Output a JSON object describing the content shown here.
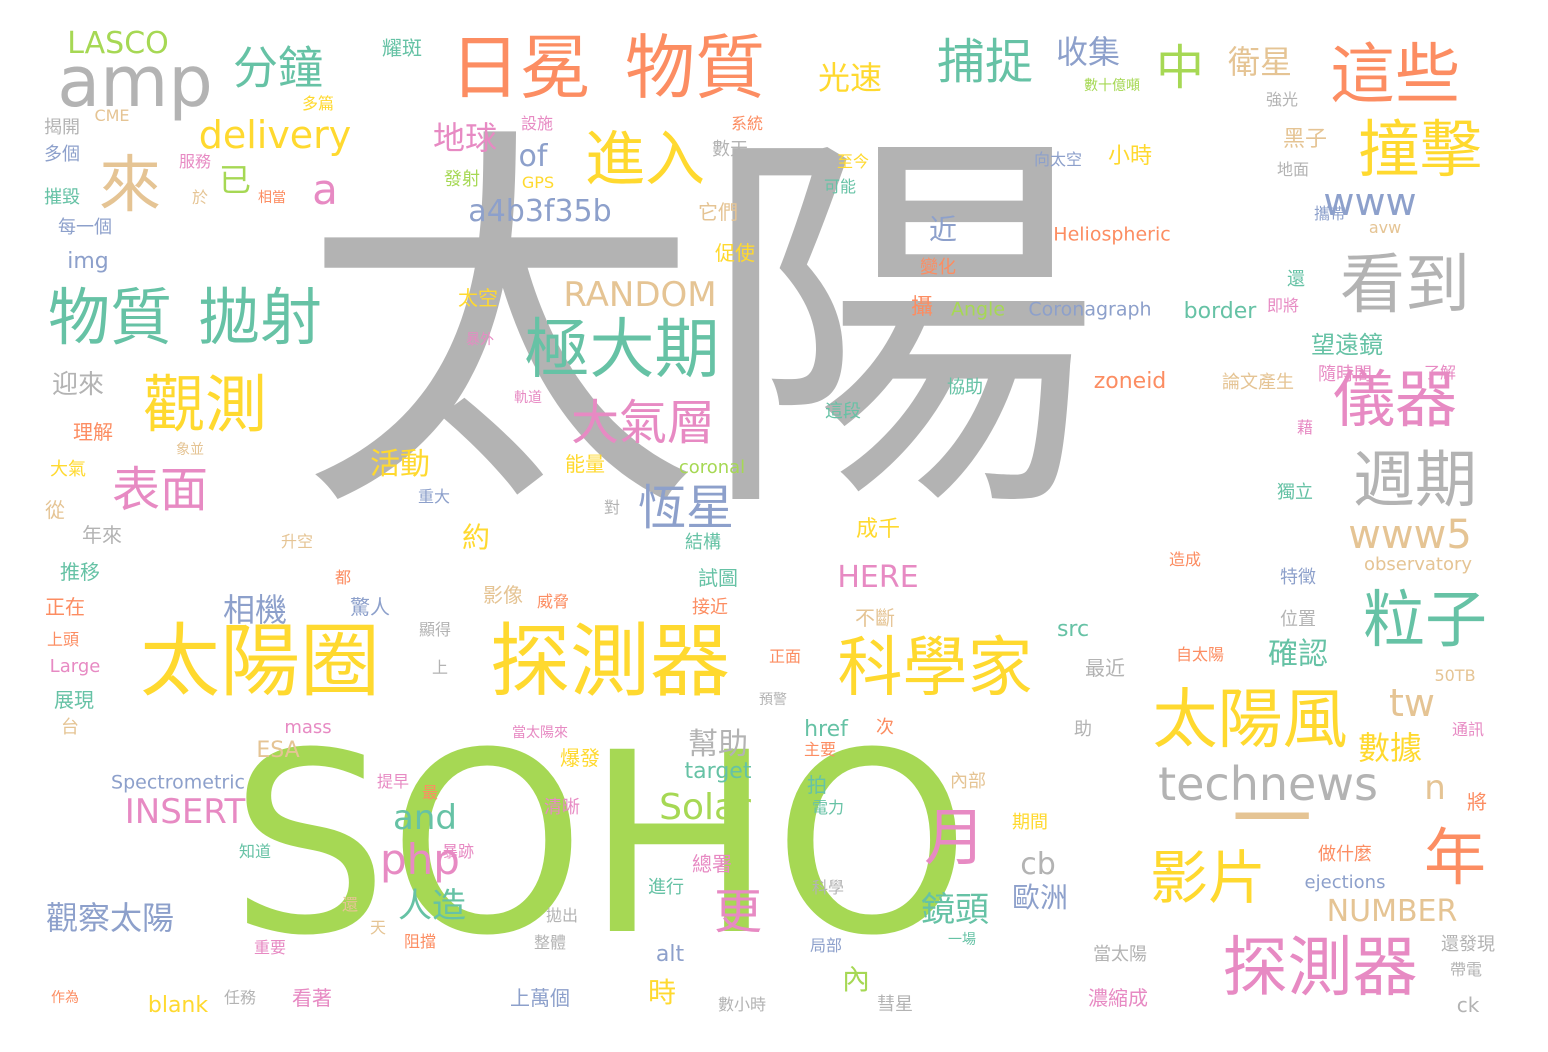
{
  "palette": {
    "gray": "#b3b3b3",
    "green": "#a6d854",
    "yellow": "#ffd92f",
    "orange": "#fc8d62",
    "teal": "#66c2a5",
    "blue": "#8da0cb",
    "pink": "#e78ac3",
    "tan": "#e5c494"
  },
  "words": [
    {
      "text": "太陽",
      "color": "gray"
    },
    {
      "text": "SOHO",
      "color": "green"
    },
    {
      "text": "太陽圈",
      "color": "yellow"
    },
    {
      "text": "探測器",
      "color": "yellow"
    },
    {
      "text": "日冕",
      "color": "orange"
    },
    {
      "text": "物質",
      "color": "orange"
    },
    {
      "text": "amp",
      "color": "gray"
    },
    {
      "text": "這些",
      "color": "orange"
    },
    {
      "text": "撞擊",
      "color": "yellow"
    },
    {
      "text": "看到",
      "color": "gray"
    },
    {
      "text": "極大期",
      "color": "teal"
    },
    {
      "text": "來",
      "color": "tan"
    },
    {
      "text": "物質",
      "color": "teal"
    },
    {
      "text": "拋射",
      "color": "teal"
    },
    {
      "text": "觀測",
      "color": "yellow"
    },
    {
      "text": "進入",
      "color": "yellow"
    },
    {
      "text": "儀器",
      "color": "pink"
    },
    {
      "text": "週期",
      "color": "gray"
    },
    {
      "text": "科學家",
      "color": "yellow"
    },
    {
      "text": "太陽風",
      "color": "yellow"
    },
    {
      "text": "探測器",
      "color": "pink"
    },
    {
      "text": "粒子",
      "color": "teal"
    },
    {
      "text": "年",
      "color": "orange"
    },
    {
      "text": "月",
      "color": "pink"
    },
    {
      "text": "影片",
      "color": "yellow"
    },
    {
      "text": "technews",
      "color": "gray"
    },
    {
      "text": "一",
      "color": "tan"
    },
    {
      "text": "分鐘",
      "color": "teal"
    },
    {
      "text": "delivery",
      "color": "yellow"
    },
    {
      "text": "a",
      "color": "pink"
    },
    {
      "text": "捕捉",
      "color": "teal"
    },
    {
      "text": "中",
      "color": "green"
    },
    {
      "text": "大氣層",
      "color": "pink"
    },
    {
      "text": "恆星",
      "color": "blue"
    },
    {
      "text": "表面",
      "color": "pink"
    },
    {
      "text": "www",
      "color": "blue"
    },
    {
      "text": "www5",
      "color": "tan"
    },
    {
      "text": "tw",
      "color": "tan"
    },
    {
      "text": "php",
      "color": "pink"
    },
    {
      "text": "更",
      "color": "pink"
    },
    {
      "text": "RANDOM",
      "color": "tan"
    },
    {
      "text": "a4b3f35b",
      "color": "blue"
    },
    {
      "text": "LASCO",
      "color": "green"
    },
    {
      "text": "收集",
      "color": "blue"
    },
    {
      "text": "衛星",
      "color": "tan"
    },
    {
      "text": "光速",
      "color": "yellow"
    },
    {
      "text": "地球",
      "color": "pink"
    },
    {
      "text": "已",
      "color": "green"
    },
    {
      "text": "of",
      "color": "blue"
    },
    {
      "text": "數據",
      "color": "yellow"
    },
    {
      "text": "相機",
      "color": "blue"
    },
    {
      "text": "Solar",
      "color": "green"
    },
    {
      "text": "INSERT",
      "color": "pink"
    },
    {
      "text": "觀察太陽",
      "color": "blue"
    },
    {
      "text": "and",
      "color": "teal"
    },
    {
      "text": "人造",
      "color": "teal"
    },
    {
      "text": "鏡頭",
      "color": "teal"
    },
    {
      "text": "HERE",
      "color": "pink"
    },
    {
      "text": "NUMBER",
      "color": "tan"
    },
    {
      "text": "確認",
      "color": "teal"
    },
    {
      "text": "幫助",
      "color": "gray"
    },
    {
      "text": "活動",
      "color": "yellow"
    },
    {
      "text": "cb",
      "color": "gray"
    },
    {
      "text": "歐洲",
      "color": "blue"
    },
    {
      "text": "n",
      "color": "tan"
    },
    {
      "text": "zoneid",
      "color": "orange"
    },
    {
      "text": "border",
      "color": "teal"
    },
    {
      "text": "Heliospheric",
      "color": "orange"
    },
    {
      "text": "Coronagraph",
      "color": "blue"
    },
    {
      "text": "Angle",
      "color": "green"
    },
    {
      "text": "Spectrometric",
      "color": "blue"
    },
    {
      "text": "observatory",
      "color": "tan"
    },
    {
      "text": "coronal",
      "color": "green"
    },
    {
      "text": "ejections",
      "color": "blue"
    },
    {
      "text": "target",
      "color": "teal"
    },
    {
      "text": "href",
      "color": "teal"
    },
    {
      "text": "mass",
      "color": "pink"
    },
    {
      "text": "ESA",
      "color": "tan"
    },
    {
      "text": "Large",
      "color": "pink"
    },
    {
      "text": "blank",
      "color": "yellow"
    },
    {
      "text": "alt",
      "color": "blue"
    },
    {
      "text": "src",
      "color": "teal"
    },
    {
      "text": "img",
      "color": "blue"
    },
    {
      "text": "CME",
      "color": "tan"
    },
    {
      "text": "GPS",
      "color": "yellow"
    },
    {
      "text": "avw",
      "color": "tan"
    },
    {
      "text": "50TB",
      "color": "tan"
    },
    {
      "text": "ck",
      "color": "gray"
    },
    {
      "text": "迎來",
      "color": "gray"
    },
    {
      "text": "近",
      "color": "blue"
    },
    {
      "text": "約",
      "color": "yellow"
    },
    {
      "text": "時",
      "color": "yellow"
    },
    {
      "text": "內",
      "color": "green"
    },
    {
      "text": "望遠鏡",
      "color": "teal"
    },
    {
      "text": "小時",
      "color": "yellow"
    },
    {
      "text": "黑子",
      "color": "tan"
    },
    {
      "text": "耀斑",
      "color": "teal"
    },
    {
      "text": "多篇",
      "color": "yellow"
    },
    {
      "text": "揭開",
      "color": "gray"
    },
    {
      "text": "多個",
      "color": "blue"
    },
    {
      "text": "摧毀",
      "color": "teal"
    },
    {
      "text": "每一個",
      "color": "blue"
    },
    {
      "text": "服務",
      "color": "pink"
    },
    {
      "text": "相當",
      "color": "orange"
    },
    {
      "text": "於",
      "color": "tan"
    },
    {
      "text": "設施",
      "color": "pink"
    },
    {
      "text": "發射",
      "color": "green"
    },
    {
      "text": "它們",
      "color": "tan"
    },
    {
      "text": "系統",
      "color": "orange"
    },
    {
      "text": "數天",
      "color": "gray"
    },
    {
      "text": "促使",
      "color": "yellow"
    },
    {
      "text": "至今",
      "color": "yellow"
    },
    {
      "text": "可能",
      "color": "teal"
    },
    {
      "text": "數十億噸",
      "color": "green"
    },
    {
      "text": "強光",
      "color": "gray"
    },
    {
      "text": "向太空",
      "color": "blue"
    },
    {
      "text": "地面",
      "color": "gray"
    },
    {
      "text": "攜帶",
      "color": "blue"
    },
    {
      "text": "變化",
      "color": "orange"
    },
    {
      "text": "攝",
      "color": "orange"
    },
    {
      "text": "還",
      "color": "teal"
    },
    {
      "text": "即將",
      "color": "pink"
    },
    {
      "text": "太空",
      "color": "yellow"
    },
    {
      "text": "隨時間",
      "color": "pink"
    },
    {
      "text": "了解",
      "color": "pink"
    },
    {
      "text": "暴外",
      "color": "pink"
    },
    {
      "text": "理解",
      "color": "orange"
    },
    {
      "text": "象並",
      "color": "tan"
    },
    {
      "text": "軌道",
      "color": "pink"
    },
    {
      "text": "這段",
      "color": "teal"
    },
    {
      "text": "協助",
      "color": "teal"
    },
    {
      "text": "論文產生",
      "color": "tan"
    },
    {
      "text": "藉",
      "color": "pink"
    },
    {
      "text": "大氣",
      "color": "yellow"
    },
    {
      "text": "從",
      "color": "tan"
    },
    {
      "text": "年來",
      "color": "gray"
    },
    {
      "text": "能量",
      "color": "yellow"
    },
    {
      "text": "重大",
      "color": "blue"
    },
    {
      "text": "對",
      "color": "gray"
    },
    {
      "text": "結構",
      "color": "teal"
    },
    {
      "text": "成千",
      "color": "yellow"
    },
    {
      "text": "獨立",
      "color": "teal"
    },
    {
      "text": "推移",
      "color": "teal"
    },
    {
      "text": "升空",
      "color": "tan"
    },
    {
      "text": "都",
      "color": "orange"
    },
    {
      "text": "試圖",
      "color": "teal"
    },
    {
      "text": "造成",
      "color": "orange"
    },
    {
      "text": "特徵",
      "color": "blue"
    },
    {
      "text": "正在",
      "color": "orange"
    },
    {
      "text": "驚人",
      "color": "blue"
    },
    {
      "text": "影像",
      "color": "tan"
    },
    {
      "text": "威脅",
      "color": "orange"
    },
    {
      "text": "接近",
      "color": "orange"
    },
    {
      "text": "不斷",
      "color": "tan"
    },
    {
      "text": "位置",
      "color": "gray"
    },
    {
      "text": "上頭",
      "color": "orange"
    },
    {
      "text": "顯得",
      "color": "gray"
    },
    {
      "text": "上",
      "color": "gray"
    },
    {
      "text": "正面",
      "color": "orange"
    },
    {
      "text": "最近",
      "color": "gray"
    },
    {
      "text": "自太陽",
      "color": "orange"
    },
    {
      "text": "展現",
      "color": "teal"
    },
    {
      "text": "台",
      "color": "tan"
    },
    {
      "text": "當太陽來",
      "color": "pink"
    },
    {
      "text": "預警",
      "color": "gray"
    },
    {
      "text": "主要",
      "color": "orange"
    },
    {
      "text": "次",
      "color": "orange"
    },
    {
      "text": "助",
      "color": "gray"
    },
    {
      "text": "通訊",
      "color": "pink"
    },
    {
      "text": "爆發",
      "color": "yellow"
    },
    {
      "text": "拍",
      "color": "teal"
    },
    {
      "text": "提早",
      "color": "pink"
    },
    {
      "text": "最",
      "color": "orange"
    },
    {
      "text": "清晰",
      "color": "pink"
    },
    {
      "text": "內部",
      "color": "tan"
    },
    {
      "text": "電力",
      "color": "teal"
    },
    {
      "text": "將",
      "color": "orange"
    },
    {
      "text": "期間",
      "color": "yellow"
    },
    {
      "text": "知道",
      "color": "teal"
    },
    {
      "text": "暴跡",
      "color": "pink"
    },
    {
      "text": "總署",
      "color": "pink"
    },
    {
      "text": "做什麼",
      "color": "orange"
    },
    {
      "text": "進行",
      "color": "teal"
    },
    {
      "text": "科學",
      "color": "gray"
    },
    {
      "text": "還",
      "color": "tan"
    },
    {
      "text": "天",
      "color": "tan"
    },
    {
      "text": "拋出",
      "color": "gray"
    },
    {
      "text": "一場",
      "color": "teal"
    },
    {
      "text": "整體",
      "color": "gray"
    },
    {
      "text": "局部",
      "color": "blue"
    },
    {
      "text": "阻擋",
      "color": "orange"
    },
    {
      "text": "當太陽",
      "color": "gray"
    },
    {
      "text": "還發現",
      "color": "gray"
    },
    {
      "text": "帶電",
      "color": "gray"
    },
    {
      "text": "看著",
      "color": "pink"
    },
    {
      "text": "上萬個",
      "color": "blue"
    },
    {
      "text": "濃縮成",
      "color": "pink"
    },
    {
      "text": "任務",
      "color": "gray"
    },
    {
      "text": "重要",
      "color": "pink"
    },
    {
      "text": "作為",
      "color": "orange"
    },
    {
      "text": "數小時",
      "color": "gray"
    },
    {
      "text": "彗星",
      "color": "gray"
    }
  ]
}
